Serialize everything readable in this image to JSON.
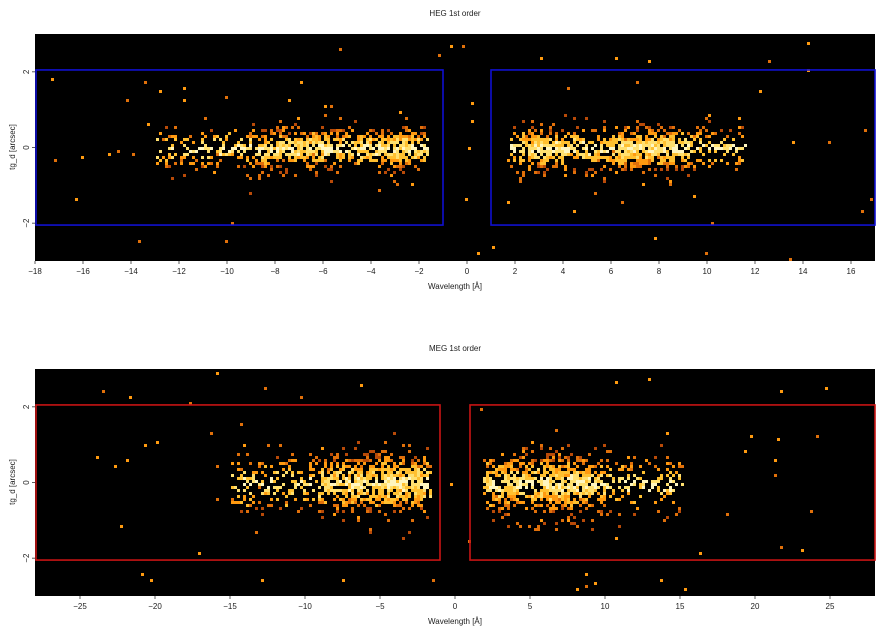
{
  "chart_data": [
    {
      "type": "heatmap",
      "title": "HEG 1st order",
      "xlabel": "Wavelength [Å]",
      "ylabel": "tg_d [arcsec]",
      "xlim": [
        -18,
        17
      ],
      "ylim": [
        -3,
        3
      ],
      "xticks": [
        -18,
        -16,
        -14,
        -12,
        -10,
        -8,
        -6,
        -4,
        -2,
        0,
        2,
        4,
        6,
        8,
        10,
        12,
        14,
        16
      ],
      "yticks": [
        -2,
        0,
        2
      ],
      "background": "#000000",
      "region_color": "#1010d0",
      "regions": [
        {
          "x": [
            -18,
            -1.0
          ],
          "y": [
            -2.05,
            2.05
          ]
        },
        {
          "x": [
            1.0,
            17
          ],
          "y": [
            -2.05,
            2.05
          ]
        }
      ],
      "clusters": [
        {
          "x": [
            -13,
            -1.7
          ],
          "peaks": [
            -8,
            -6.5,
            -3.5,
            -2.5
          ],
          "y_sigma": 0.3
        },
        {
          "x": [
            1.7,
            11.5
          ],
          "peaks": [
            3.0,
            6.5,
            8.0
          ],
          "y_sigma": 0.3
        }
      ]
    },
    {
      "type": "heatmap",
      "title": "MEG 1st order",
      "xlabel": "Wavelength [Å]",
      "ylabel": "tg_d [arcsec]",
      "xlim": [
        -28,
        28
      ],
      "ylim": [
        -3,
        3
      ],
      "xticks": [
        -25,
        -20,
        -15,
        -10,
        -5,
        0,
        5,
        10,
        15,
        20,
        25
      ],
      "yticks": [
        -2,
        0,
        2
      ],
      "background": "#000000",
      "region_color": "#c81414",
      "regions": [
        {
          "x": [
            -28,
            -1.0
          ],
          "y": [
            -2.05,
            2.05
          ]
        },
        {
          "x": [
            1.0,
            28
          ],
          "y": [
            -2.05,
            2.05
          ]
        }
      ],
      "clusters": [
        {
          "x": [
            -15,
            -1.8
          ],
          "peaks": [
            -7.5,
            -4.5,
            -2.5
          ],
          "y_sigma": 0.4
        },
        {
          "x": [
            1.8,
            15
          ],
          "peaks": [
            3.5,
            6.5,
            8.0
          ],
          "y_sigma": 0.4
        }
      ]
    }
  ]
}
